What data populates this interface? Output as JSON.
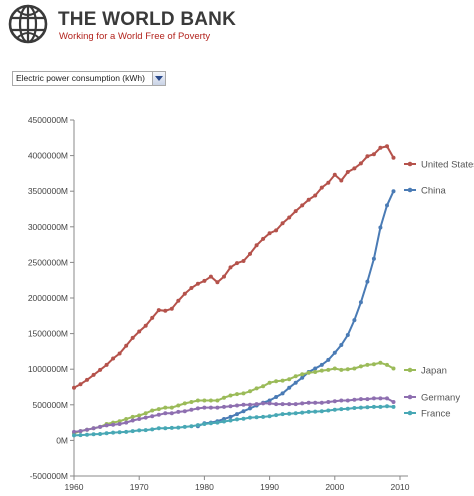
{
  "header": {
    "brand_name": "THE WORLD BANK",
    "tagline": "Working for a World Free of Poverty",
    "logo_icon": "globe-logo-icon"
  },
  "indicator_select": {
    "value": "Electric power consumption (kWh)",
    "icon": "chevron-down-icon"
  },
  "colors": {
    "United States": "#b5524b",
    "China": "#4a7bb5",
    "Japan": "#9bbb59",
    "Germany": "#8e6fb0",
    "France": "#48a8b5"
  },
  "chart_data": {
    "type": "line",
    "ylim": [
      -500000,
      4500000
    ],
    "xlim": [
      1960,
      2010
    ],
    "yticks": [
      "4500000M",
      "4000000M",
      "3500000M",
      "3000000M",
      "2500000M",
      "2000000M",
      "1500000M",
      "1000000M",
      "500000M",
      "0M",
      "-500000M"
    ],
    "xticks": [
      "1960",
      "1970",
      "1980",
      "1990",
      "2000",
      "2010"
    ],
    "x": [
      1960,
      1961,
      1962,
      1963,
      1964,
      1965,
      1966,
      1967,
      1968,
      1969,
      1970,
      1971,
      1972,
      1973,
      1974,
      1975,
      1976,
      1977,
      1978,
      1979,
      1980,
      1981,
      1982,
      1983,
      1984,
      1985,
      1986,
      1987,
      1988,
      1989,
      1990,
      1991,
      1992,
      1993,
      1994,
      1995,
      1996,
      1997,
      1998,
      1999,
      2000,
      2001,
      2002,
      2003,
      2004,
      2005,
      2006,
      2007,
      2008,
      2009
    ],
    "series": [
      {
        "name": "United States",
        "values": [
          740000,
          790000,
          850000,
          920000,
          990000,
          1060000,
          1150000,
          1220000,
          1330000,
          1440000,
          1530000,
          1610000,
          1720000,
          1830000,
          1820000,
          1850000,
          1960000,
          2060000,
          2140000,
          2200000,
          2240000,
          2300000,
          2220000,
          2300000,
          2430000,
          2490000,
          2520000,
          2620000,
          2740000,
          2830000,
          2910000,
          2950000,
          3050000,
          3130000,
          3220000,
          3300000,
          3380000,
          3440000,
          3550000,
          3620000,
          3730000,
          3650000,
          3770000,
          3820000,
          3890000,
          3990000,
          4020000,
          4110000,
          4130000,
          3970000
        ]
      },
      {
        "name": "China",
        "values": [
          null,
          null,
          null,
          null,
          null,
          null,
          null,
          null,
          null,
          null,
          null,
          null,
          null,
          null,
          null,
          null,
          null,
          null,
          null,
          200000,
          240000,
          250000,
          270000,
          300000,
          330000,
          370000,
          410000,
          450000,
          490000,
          530000,
          560000,
          610000,
          660000,
          740000,
          810000,
          880000,
          960000,
          1010000,
          1060000,
          1130000,
          1230000,
          1340000,
          1480000,
          1690000,
          1940000,
          2230000,
          2550000,
          2990000,
          3300000,
          3500000
        ]
      },
      {
        "name": "Japan",
        "values": [
          100000,
          130000,
          150000,
          170000,
          190000,
          230000,
          250000,
          270000,
          300000,
          330000,
          350000,
          380000,
          420000,
          440000,
          460000,
          460000,
          490000,
          520000,
          540000,
          560000,
          560000,
          560000,
          560000,
          600000,
          630000,
          650000,
          660000,
          690000,
          730000,
          760000,
          810000,
          830000,
          840000,
          860000,
          900000,
          930000,
          950000,
          960000,
          980000,
          990000,
          1010000,
          990000,
          1000000,
          1010000,
          1040000,
          1060000,
          1070000,
          1090000,
          1060000,
          1010000
        ]
      },
      {
        "name": "Germany",
        "values": [
          120000,
          130000,
          150000,
          170000,
          190000,
          210000,
          220000,
          230000,
          250000,
          280000,
          300000,
          320000,
          340000,
          360000,
          380000,
          380000,
          400000,
          410000,
          430000,
          450000,
          460000,
          460000,
          460000,
          470000,
          480000,
          490000,
          500000,
          500000,
          510000,
          520000,
          520000,
          510000,
          510000,
          510000,
          510000,
          520000,
          530000,
          530000,
          530000,
          540000,
          550000,
          560000,
          560000,
          570000,
          580000,
          580000,
          590000,
          590000,
          590000,
          540000
        ]
      },
      {
        "name": "France",
        "values": [
          70000,
          75000,
          80000,
          85000,
          90000,
          100000,
          110000,
          115000,
          120000,
          130000,
          140000,
          145000,
          155000,
          170000,
          170000,
          175000,
          180000,
          190000,
          200000,
          215000,
          230000,
          240000,
          250000,
          265000,
          280000,
          295000,
          305000,
          320000,
          325000,
          330000,
          340000,
          355000,
          370000,
          375000,
          380000,
          390000,
          400000,
          405000,
          410000,
          420000,
          430000,
          440000,
          445000,
          455000,
          460000,
          465000,
          470000,
          470000,
          480000,
          470000
        ]
      }
    ]
  }
}
